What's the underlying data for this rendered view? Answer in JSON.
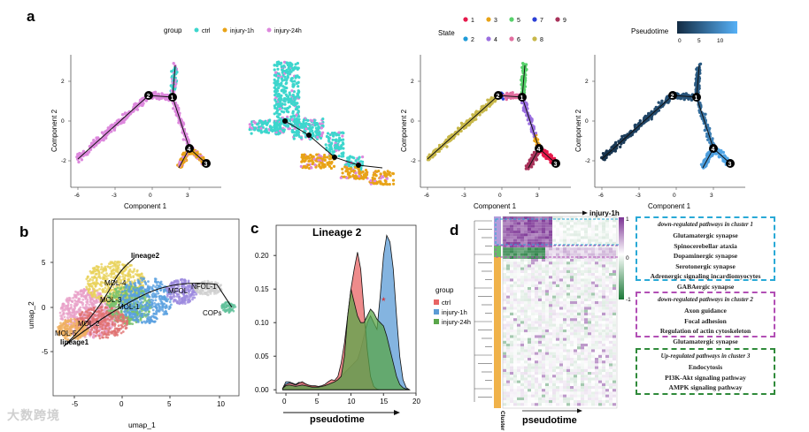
{
  "figure": {
    "panel_labels": [
      "a",
      "b",
      "c",
      "d"
    ],
    "watermark": "大数跨境"
  },
  "panel_a": {
    "group_legend": {
      "title": "group",
      "items": [
        {
          "label": "ctrl",
          "color": "#3dd6cd"
        },
        {
          "label": "injury-1h",
          "color": "#e8a317"
        },
        {
          "label": "injury-24h",
          "color": "#dd88dd"
        }
      ]
    },
    "state_legend": {
      "title": "State",
      "items": [
        {
          "label": "1",
          "color": "#e6194b"
        },
        {
          "label": "2",
          "color": "#1f9bd8"
        },
        {
          "label": "3",
          "color": "#e8a317"
        },
        {
          "label": "4",
          "color": "#9b6fe0"
        },
        {
          "label": "5",
          "color": "#57d16b"
        },
        {
          "label": "6",
          "color": "#e26fa0"
        },
        {
          "label": "7",
          "color": "#2b3fd6"
        },
        {
          "label": "8",
          "color": "#c8b84a"
        },
        {
          "label": "9",
          "color": "#a8325a"
        }
      ]
    },
    "pseudotime_legend": {
      "title": "Pseudotime",
      "ticks": [
        "0",
        "5",
        "10"
      ],
      "low": "#132b43",
      "high": "#56b1f7"
    },
    "axis": {
      "xlabel": "Component 1",
      "ylabel": "Component 2",
      "xticks": [
        "-6",
        "-3",
        "0",
        "3"
      ],
      "yticks": [
        "2",
        "0",
        "-2"
      ]
    },
    "node_labels": [
      "1",
      "2",
      "3",
      "4"
    ]
  },
  "panel_b": {
    "xlabel": "umap_1",
    "ylabel": "umap_2",
    "xticks": [
      "-5",
      "0",
      "5",
      "10"
    ],
    "yticks": [
      "5",
      "0",
      "-5"
    ],
    "cluster_labels": [
      "lineage2",
      "MOL-4",
      "MOL-3",
      "MOL-1",
      "MOL-2",
      "MOL-5",
      "lineage1",
      "MFOL",
      "NFOL-1",
      "COPs"
    ]
  },
  "chart_data": [
    {
      "type": "area",
      "title": "Lineage 2",
      "xlabel": "pseudotime",
      "ylabel": "",
      "xlim": [
        -1.5,
        20
      ],
      "ylim": [
        -0.005,
        0.245
      ],
      "xticks": [
        0,
        5,
        10,
        15,
        20
      ],
      "yticks": [
        0.0,
        0.05,
        0.1,
        0.15,
        0.2
      ],
      "x": [
        -0.5,
        0,
        0.5,
        1,
        1.5,
        2,
        2.5,
        3,
        3.5,
        4,
        4.5,
        5,
        5.5,
        6,
        6.5,
        7,
        7.5,
        8,
        8.5,
        9,
        9.5,
        10,
        10.5,
        11,
        11.5,
        12,
        12.5,
        13,
        13.5,
        14,
        14.5,
        15,
        15.5,
        16,
        16.5,
        17,
        17.5,
        18,
        18.5,
        19
      ],
      "series": [
        {
          "name": "ctrl",
          "color": "#e86464",
          "values": [
            0.002,
            0.008,
            0.01,
            0.009,
            0.007,
            0.01,
            0.012,
            0.009,
            0.007,
            0.006,
            0.006,
            0.005,
            0.006,
            0.008,
            0.012,
            0.015,
            0.014,
            0.02,
            0.04,
            0.07,
            0.11,
            0.15,
            0.18,
            0.205,
            0.18,
            0.12,
            0.06,
            0.02,
            0.005,
            0.001,
            0,
            0,
            0,
            0,
            0,
            0,
            0,
            0,
            0,
            0
          ]
        },
        {
          "name": "injury-1h",
          "color": "#5b9bd5",
          "values": [
            0.002,
            0.012,
            0.012,
            0.01,
            0.008,
            0.011,
            0.01,
            0.008,
            0.006,
            0.005,
            0.005,
            0.004,
            0.004,
            0.006,
            0.008,
            0.01,
            0.012,
            0.015,
            0.02,
            0.025,
            0.03,
            0.035,
            0.04,
            0.045,
            0.06,
            0.08,
            0.1,
            0.11,
            0.1,
            0.09,
            0.14,
            0.2,
            0.23,
            0.22,
            0.18,
            0.11,
            0.05,
            0.015,
            0.003,
            0
          ]
        },
        {
          "name": "injury-24h",
          "color": "#5aa64a",
          "values": [
            0.002,
            0.006,
            0.007,
            0.006,
            0.005,
            0.006,
            0.007,
            0.006,
            0.005,
            0.004,
            0.004,
            0.004,
            0.005,
            0.006,
            0.008,
            0.01,
            0.012,
            0.015,
            0.02,
            0.05,
            0.11,
            0.15,
            0.13,
            0.11,
            0.1,
            0.1,
            0.11,
            0.12,
            0.115,
            0.105,
            0.1,
            0.095,
            0.08,
            0.06,
            0.04,
            0.02,
            0.008,
            0.003,
            0.001,
            0
          ]
        }
      ],
      "annotation": "*",
      "legend": {
        "title": "group",
        "position": "left"
      }
    },
    {
      "type": "heatmap",
      "xlabel": "pseudotime",
      "top_label": "injury-1h",
      "side_label": "Cluster",
      "colorbar": {
        "ticks": [
          "1",
          "0",
          "-1"
        ],
        "high": "#7b3294",
        "mid": "#ffffff",
        "low": "#1b7837"
      },
      "clusters": [
        {
          "name": "1",
          "color": "#b39ddb"
        },
        {
          "name": "2",
          "color": "#66bb6a"
        },
        {
          "name": "3",
          "color": "#f0b24a"
        }
      ]
    }
  ],
  "pathways": [
    {
      "title": "down-regulated pathways in cluster 1",
      "color": "#29a9d6",
      "items": [
        "Glutamatergic synapse",
        "Spinocerebellar ataxia",
        "Dopaminergic synapse",
        "Serotonergic synapse",
        "Adrenergic signaling incardiomyocytes",
        "GABAergic synapse"
      ]
    },
    {
      "title": "down-regulated pathways in cluster 2",
      "color": "#b24fb5",
      "items": [
        "Axon guidance",
        "Focal adhesion",
        "Regulation of actin cytoskeleton",
        "Glutamatergic synapse"
      ]
    },
    {
      "title": "Up-regulated pathways in cluster 3",
      "color": "#2f8a3a",
      "items": [
        "Endocytosis",
        "PI3K-Akt signaling pathway",
        "AMPK signaling pathway"
      ]
    }
  ]
}
